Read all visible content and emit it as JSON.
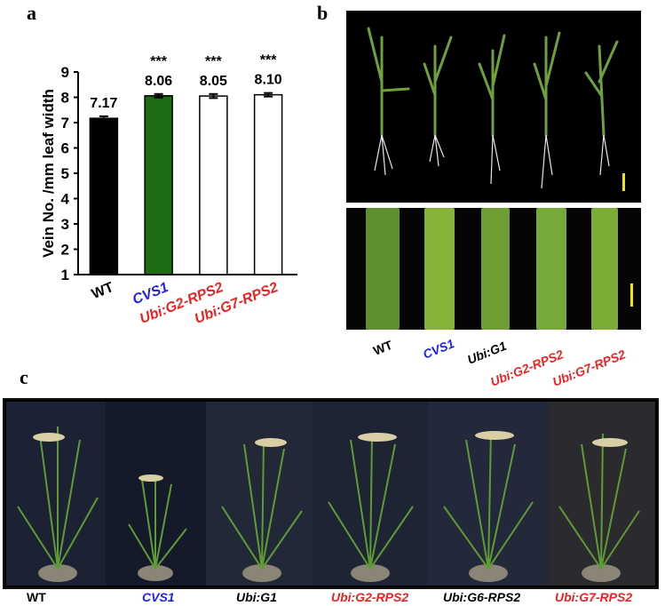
{
  "panels": {
    "a": "a",
    "b": "b",
    "c": "c"
  },
  "chart_data": {
    "type": "bar",
    "ylabel": "Vein No. /mm leaf width",
    "ylim": [
      1,
      9
    ],
    "yticks": [
      "1",
      "2",
      "3",
      "4",
      "5",
      "6",
      "7",
      "8",
      "9"
    ],
    "categories": [
      "WT",
      "CVS1",
      "Ubi:G2-RPS2",
      "Ubi:G7-RPS2"
    ],
    "values": [
      7.17,
      8.06,
      8.05,
      8.1
    ],
    "value_labels": [
      "7.17",
      "8.06",
      "8.05",
      "8.10"
    ],
    "significance": [
      "",
      "***",
      "***",
      "***"
    ],
    "bar_fill": [
      "#000000",
      "#1e6b14",
      "#ffffff",
      "#ffffff"
    ],
    "category_colors": [
      "#000000",
      "#2222ee",
      "#ee2222",
      "#ee2222"
    ],
    "errors": [
      0.08,
      0.07,
      0.08,
      0.07
    ]
  },
  "panel_b": {
    "labels": [
      "WT",
      "CVS1",
      "Ubi:G1",
      "Ubi:G2-RPS2",
      "Ubi:G7-RPS2"
    ],
    "label_colors": [
      "#000000",
      "#2222ee",
      "#000000",
      "#ee2222",
      "#ee2222"
    ]
  },
  "panel_c": {
    "labels": [
      "WT",
      "CVS1",
      "Ubi:G1",
      "Ubi:G2-RPS2",
      "Ubi:G6-RPS2",
      "Ubi:G7-RPS2"
    ],
    "label_colors": [
      "#000000",
      "#2222ee",
      "#000000",
      "#ee2222",
      "#000000",
      "#ee2222"
    ]
  }
}
